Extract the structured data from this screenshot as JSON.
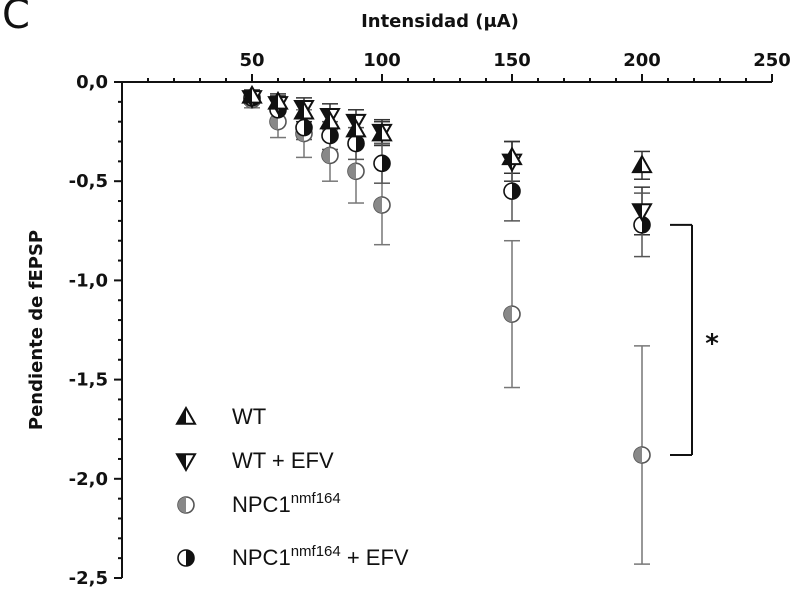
{
  "panel_label": "C",
  "chart_data": {
    "type": "scatter",
    "xlabel_prefix": "Intensidad",
    "xlabel_unit": "(μA)",
    "ylabel": "Pendiente de fEPSP",
    "xlim": [
      0,
      250
    ],
    "ylim": [
      -2.5,
      0
    ],
    "x_ticks": [
      50,
      100,
      150,
      200,
      250
    ],
    "y_ticks": [
      0.0,
      -0.5,
      -1.0,
      -1.5,
      -2.0,
      -2.5
    ],
    "x_tick_labels": [
      "50",
      "100",
      "150",
      "200",
      "250"
    ],
    "y_tick_labels": [
      "0,0",
      "-0,5",
      "-1,0",
      "-1,5",
      "-2,0",
      "-2,5"
    ],
    "x_axis_position": "top",
    "grid": false,
    "legend_position": "bottom-left",
    "series": [
      {
        "name": "WT",
        "marker": "triangle-up-half",
        "x": [
          50,
          60,
          70,
          80,
          90,
          100,
          150,
          200
        ],
        "y": [
          -0.07,
          -0.1,
          -0.15,
          -0.2,
          -0.24,
          -0.26,
          -0.38,
          -0.42
        ],
        "err": [
          0.03,
          0.04,
          0.05,
          0.06,
          0.06,
          0.06,
          0.08,
          0.07
        ]
      },
      {
        "name": "WT + EFV",
        "marker": "triangle-down-half",
        "x": [
          50,
          60,
          70,
          80,
          90,
          100,
          150,
          200
        ],
        "y": [
          -0.08,
          -0.11,
          -0.13,
          -0.17,
          -0.2,
          -0.25,
          -0.4,
          -0.65
        ],
        "err": [
          0.03,
          0.04,
          0.05,
          0.06,
          0.06,
          0.06,
          0.1,
          0.12
        ]
      },
      {
        "name_base": "NPC1",
        "name_sup": "nmf164",
        "marker": "circle-half-left",
        "x": [
          50,
          60,
          70,
          80,
          90,
          100,
          150,
          200
        ],
        "y": [
          -0.09,
          -0.2,
          -0.26,
          -0.37,
          -0.45,
          -0.62,
          -1.17,
          -1.88
        ],
        "err": [
          0.04,
          0.08,
          0.12,
          0.13,
          0.16,
          0.2,
          0.37,
          0.55
        ]
      },
      {
        "name_base": "NPC1",
        "name_sup": "nmf164",
        "name_suffix": "+ EFV",
        "marker": "circle-half-right",
        "x": [
          50,
          60,
          70,
          80,
          90,
          100,
          150,
          200
        ],
        "y": [
          -0.08,
          -0.14,
          -0.23,
          -0.27,
          -0.31,
          -0.41,
          -0.55,
          -0.72
        ],
        "err": [
          0.03,
          0.05,
          0.06,
          0.07,
          0.08,
          0.1,
          0.15,
          0.16
        ]
      }
    ],
    "annotations": [
      {
        "type": "significance-bracket",
        "x": 200,
        "y_from": -0.72,
        "y_to": -1.88,
        "label": "*"
      }
    ]
  }
}
